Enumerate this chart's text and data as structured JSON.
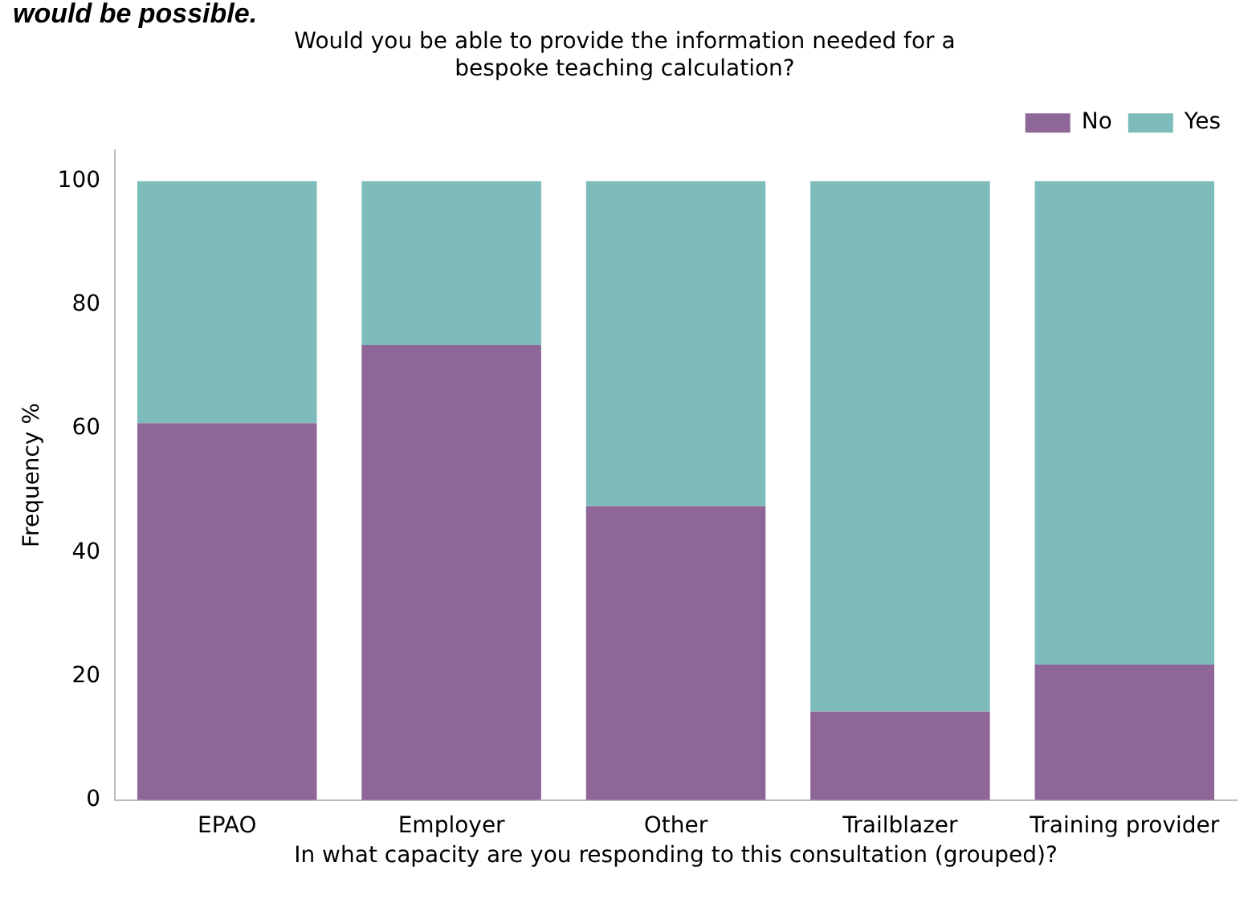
{
  "chart_data": {
    "type": "bar",
    "title": "Would you be able to provide the information needed for a\nbespoke teaching calculation?",
    "xlabel": "In what capacity are you responding to this consultation (grouped)?",
    "ylabel": "Frequency %",
    "annotations": [
      "would be possible."
    ],
    "categories": [
      "EPAO",
      "Employer",
      "Other",
      "Trailblazer",
      "Training provider"
    ],
    "series": [
      {
        "name": "No",
        "color": "#8e6698",
        "values": [
          60.9,
          73.5,
          47.5,
          14.3,
          21.9
        ]
      },
      {
        "name": "Yes",
        "color": "#7dbcba",
        "values": [
          39.1,
          26.5,
          52.5,
          85.7,
          78.1
        ]
      }
    ],
    "stacked": true,
    "ylim": [
      0,
      105
    ],
    "yticks": [
      0,
      20,
      40,
      60,
      80,
      100
    ],
    "grid": false,
    "legend": "top right"
  }
}
